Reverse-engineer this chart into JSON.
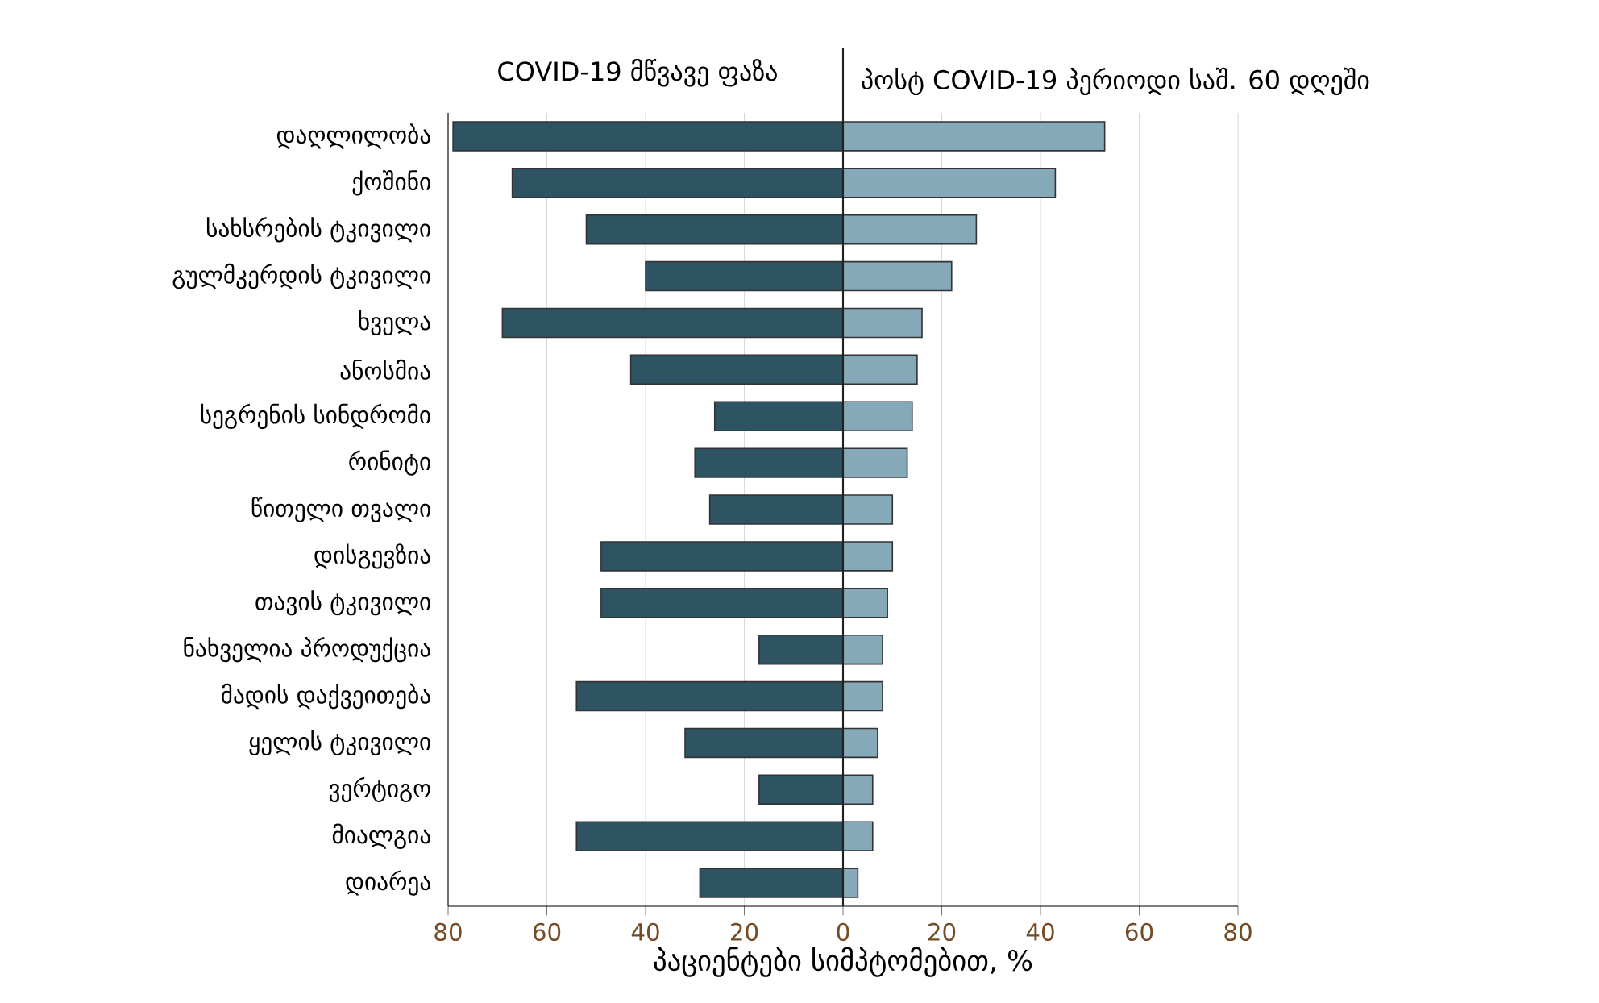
{
  "chart_data": {
    "type": "bar",
    "orientation": "horizontal",
    "xlabel": "პაციენტები სიმპტომებით, %",
    "categories": [
      "დაღლილობა",
      "ქოშინი",
      "სახსრების ტკივილი",
      "გულმკერდის ტკივილი",
      "ხველა",
      "ანოსმია",
      "სეგრენის სინდრომი",
      "რინიტი",
      "წითელი თვალი",
      "დისგევზია",
      "თავის ტკივილი",
      "ნახველია პროდუქცია",
      "მადის დაქვეითება",
      "ყელის ტკივილი",
      "ვერტიგო",
      "მიალგია",
      "დიარეა"
    ],
    "series": [
      {
        "name": "COVID-19 მწვავე ფაზა",
        "color": "#2e5362",
        "values": [
          -79,
          -67,
          -52,
          -40,
          -69,
          -43,
          -26,
          -30,
          -27,
          -49,
          -49,
          -17,
          -54,
          -32,
          -17,
          -54,
          -29
        ]
      },
      {
        "name": "პოსტ COVID-19 პერიოდი საშ. 60 დღეში",
        "color": "#86a9b9",
        "values": [
          53,
          43,
          27,
          22,
          16,
          15,
          14,
          13,
          10,
          10,
          9,
          8,
          8,
          7,
          6,
          6,
          3
        ]
      }
    ],
    "xlim": [
      -80,
      80
    ],
    "xticks": [
      {
        "value": -80,
        "label": "80"
      },
      {
        "value": -60,
        "label": "60"
      },
      {
        "value": -40,
        "label": "40"
      },
      {
        "value": -20,
        "label": "20"
      },
      0,
      20,
      40,
      60,
      80
    ],
    "grid": "x",
    "stacked": true,
    "ref_lines": [
      {
        "axis": "x",
        "value": 0,
        "color": "#222222"
      }
    ]
  }
}
